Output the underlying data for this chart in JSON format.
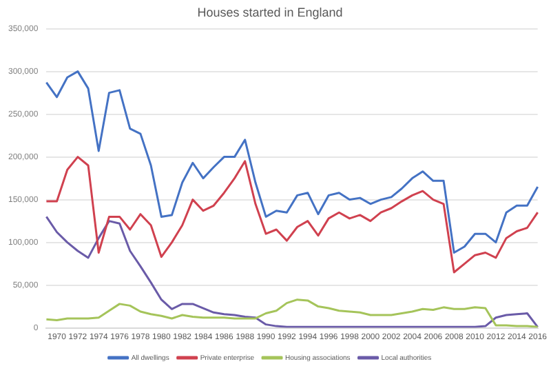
{
  "chart_data": {
    "type": "line",
    "title": "Houses started in England",
    "categories": [
      null,
      "1970",
      null,
      "1972",
      null,
      "1974",
      null,
      "1976",
      null,
      "1978",
      null,
      "1980",
      null,
      "1982",
      null,
      "1984",
      null,
      "1986",
      null,
      "1988",
      null,
      "1990",
      null,
      "1992",
      null,
      "1994",
      null,
      "1996",
      null,
      "1998",
      null,
      "2000",
      null,
      "2002",
      null,
      "2004",
      null,
      "2006",
      null,
      "2008",
      null,
      "2010",
      null,
      "2012",
      null,
      "2014",
      null,
      "2016"
    ],
    "series": [
      {
        "name": "All dwellings",
        "color": "#4472c4",
        "values": [
          287000,
          270000,
          293000,
          300000,
          280000,
          207000,
          275000,
          278000,
          233000,
          227000,
          190000,
          130000,
          132000,
          170000,
          193000,
          175000,
          188000,
          200000,
          200000,
          220000,
          170000,
          130000,
          137000,
          135000,
          155000,
          158000,
          133000,
          155000,
          158000,
          150000,
          152000,
          145000,
          150000,
          153000,
          163000,
          175000,
          183000,
          172000,
          172000,
          88000,
          95000,
          110000,
          110000,
          100000,
          135000,
          143000,
          143000,
          165000
        ]
      },
      {
        "name": "Private enterprise",
        "color": "#d0414f",
        "values": [
          148000,
          148000,
          185000,
          200000,
          190000,
          88000,
          130000,
          130000,
          115000,
          133000,
          120000,
          83000,
          100000,
          120000,
          150000,
          137000,
          143000,
          158000,
          175000,
          195000,
          145000,
          110000,
          115000,
          102000,
          118000,
          125000,
          108000,
          128000,
          135000,
          128000,
          132000,
          125000,
          135000,
          140000,
          148000,
          155000,
          160000,
          150000,
          145000,
          65000,
          75000,
          85000,
          88000,
          82000,
          105000,
          113000,
          117000,
          135000
        ]
      },
      {
        "name": "Housing associations",
        "color": "#a5c45a",
        "values": [
          10000,
          9000,
          11000,
          11000,
          11000,
          12000,
          20000,
          28000,
          26000,
          19000,
          16000,
          14000,
          11000,
          15000,
          13000,
          12000,
          12000,
          12000,
          11000,
          11000,
          11000,
          17000,
          20000,
          29000,
          33000,
          32000,
          25000,
          23000,
          20000,
          19000,
          18000,
          15000,
          15000,
          15000,
          17000,
          19000,
          22000,
          21000,
          24000,
          22000,
          22000,
          24000,
          23000,
          3000,
          3000,
          2000,
          2000,
          1000
        ]
      },
      {
        "name": "Local authorities",
        "color": "#6a5ba8",
        "values": [
          130000,
          112000,
          100000,
          90000,
          82000,
          105000,
          125000,
          122000,
          90000,
          72000,
          53000,
          33000,
          22000,
          28000,
          28000,
          23000,
          18000,
          16000,
          15000,
          13000,
          12000,
          4000,
          2000,
          1000,
          1000,
          1000,
          1000,
          1000,
          1000,
          1000,
          1000,
          1000,
          1000,
          1000,
          1000,
          1000,
          1000,
          1000,
          1000,
          1000,
          1000,
          1000,
          2000,
          12000,
          15000,
          16000,
          17000,
          1000
        ]
      }
    ],
    "ylim": [
      0,
      350000
    ],
    "yticks": [
      0,
      {
        "value": 50000,
        "label": "50,000"
      },
      {
        "value": 100000,
        "label": "100,000"
      },
      {
        "value": 150000,
        "label": "150,000"
      },
      {
        "value": 200000,
        "label": "200,000"
      },
      {
        "value": 250000,
        "label": "250,000"
      },
      {
        "value": 300000,
        "label": "300,000"
      },
      {
        "value": 350000,
        "label": "350,000"
      }
    ],
    "grid": "y",
    "legend": "bottom",
    "marker": "none",
    "line_style": "solid"
  }
}
